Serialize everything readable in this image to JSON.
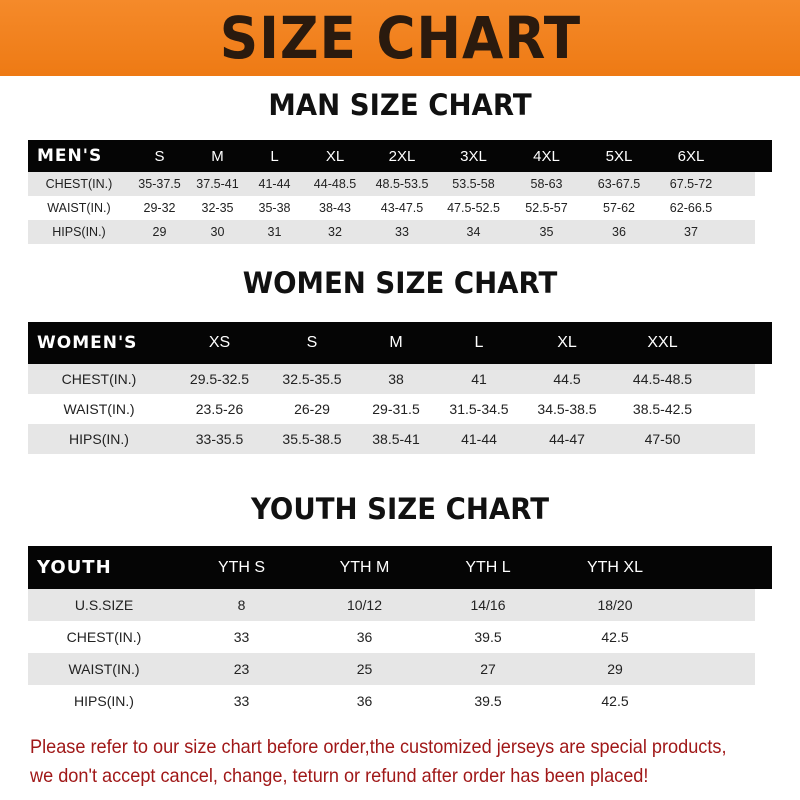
{
  "title": "SIZE CHART",
  "men": {
    "title": "MAN SIZE CHART",
    "header": [
      "MEN'S",
      "S",
      "M",
      "L",
      "XL",
      "2XL",
      "3XL",
      "4XL",
      "5XL",
      "6XL"
    ],
    "rows": [
      [
        "CHEST(IN.)",
        "35-37.5",
        "37.5-41",
        "41-44",
        "44-48.5",
        "48.5-53.5",
        "53.5-58",
        "58-63",
        "63-67.5",
        "67.5-72"
      ],
      [
        "WAIST(IN.)",
        "29-32",
        "32-35",
        "35-38",
        "38-43",
        "43-47.5",
        "47.5-52.5",
        "52.5-57",
        "57-62",
        "62-66.5"
      ],
      [
        "HIPS(IN.)",
        "29",
        "30",
        "31",
        "32",
        "33",
        "34",
        "35",
        "36",
        "37"
      ]
    ]
  },
  "women": {
    "title": "WOMEN SIZE CHART",
    "header": [
      "WOMEN'S",
      "XS",
      "S",
      "M",
      "L",
      "XL",
      "XXL"
    ],
    "rows": [
      [
        "CHEST(IN.)",
        "29.5-32.5",
        "32.5-35.5",
        "38",
        "41",
        "44.5",
        "44.5-48.5"
      ],
      [
        "WAIST(IN.)",
        "23.5-26",
        "26-29",
        "29-31.5",
        "31.5-34.5",
        "34.5-38.5",
        "38.5-42.5"
      ],
      [
        "HIPS(IN.)",
        "33-35.5",
        "35.5-38.5",
        "38.5-41",
        "41-44",
        "44-47",
        "47-50"
      ]
    ]
  },
  "youth": {
    "title": "YOUTH SIZE CHART",
    "header": [
      "YOUTH",
      "YTH S",
      "YTH M",
      "YTH L",
      "YTH XL"
    ],
    "rows": [
      [
        "U.S.SIZE",
        "8",
        "10/12",
        "14/16",
        "18/20"
      ],
      [
        "CHEST(IN.)",
        "33",
        "36",
        "39.5",
        "42.5"
      ],
      [
        "WAIST(IN.)",
        "23",
        "25",
        "27",
        "29"
      ],
      [
        "HIPS(IN.)",
        "33",
        "36",
        "39.5",
        "42.5"
      ]
    ]
  },
  "note": [
    "Please refer to our size chart before order,the customized jerseys are special products,",
    "we don't accept cancel, change, teturn or refund after order has been placed!"
  ],
  "colors": {
    "banner": "#f08020",
    "header_row": "#050505",
    "stripe": "#e6e6e6",
    "note": "#a01818"
  }
}
